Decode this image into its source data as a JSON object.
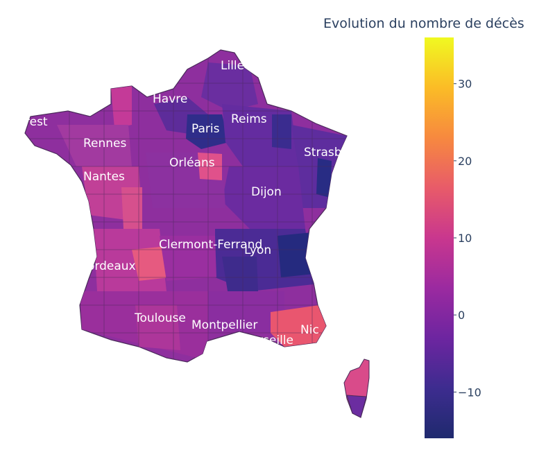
{
  "colorbar": {
    "title": "Evolution du nombre de décès",
    "min": -16,
    "max": 36,
    "ticks": [
      {
        "value": 30,
        "label": "30"
      },
      {
        "value": 20,
        "label": "20"
      },
      {
        "value": 10,
        "label": "10"
      },
      {
        "value": 0,
        "label": "0"
      },
      {
        "value": -10,
        "label": "−10"
      }
    ],
    "colors": [
      "#1f2a6e",
      "#3d2c8f",
      "#6d25a0",
      "#9b2aa0",
      "#c9378e",
      "#e85b69",
      "#f7893f",
      "#fbbc26",
      "#f0f921"
    ]
  },
  "cities": [
    "Lille",
    "Le Havre",
    "Brest",
    "Rennes",
    "Paris",
    "Reims",
    "Strasbourg",
    "Orléans",
    "Nantes",
    "Dijon",
    "Clermont-Ferrand",
    "Lyon",
    "Bordeaux",
    "Toulouse",
    "Montpellier",
    "Marseille",
    "Nice"
  ],
  "city_labels_visible": [
    "Lille",
    "Havre",
    "rest",
    "Rennes",
    "Paris",
    "Reims",
    "Strasb",
    "Orléans",
    "Nantes",
    "Dijon",
    "Clermont-Ferrand",
    "Lyon",
    "ordeaux",
    "Toulouse",
    "Montpellier",
    "Marseille",
    "Nic"
  ],
  "base_color": "#8e2f9e"
}
